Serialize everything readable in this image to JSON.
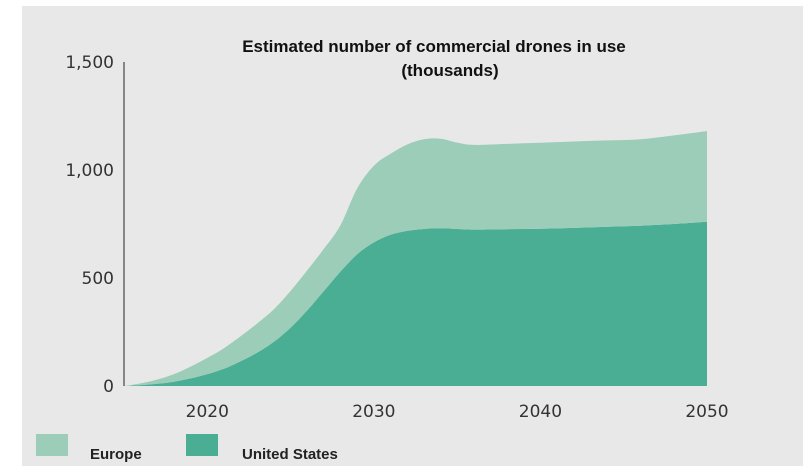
{
  "chart_data": {
    "type": "area",
    "stacked": true,
    "title": "Estimated number of commercial drones in use",
    "subtitle": "(thousands)",
    "xlabel": "",
    "ylabel": "",
    "xlim": [
      2015,
      2050
    ],
    "ylim": [
      0,
      1500
    ],
    "x_ticks": [
      2020,
      2030,
      2040,
      2050
    ],
    "y_ticks": [
      0,
      500,
      1000,
      1500
    ],
    "x_tick_labels": [
      "2020",
      "2030",
      "2040",
      "2050"
    ],
    "y_tick_labels": [
      "0",
      "500",
      "1,000",
      "1,500"
    ],
    "grid": false,
    "legend_position": "bottom-left",
    "x": [
      2015,
      2016,
      2017,
      2018,
      2019,
      2020,
      2021,
      2022,
      2023,
      2024,
      2025,
      2026,
      2027,
      2028,
      2029,
      2030,
      2031,
      2032,
      2033,
      2034,
      2035,
      2036,
      2038,
      2040,
      2042,
      2044,
      2046,
      2048,
      2050
    ],
    "series": [
      {
        "name": "United States",
        "color": "#4aae94",
        "values": [
          0,
          4,
          10,
          20,
          35,
          55,
          80,
          115,
          155,
          205,
          270,
          350,
          440,
          530,
          610,
          665,
          700,
          718,
          727,
          730,
          727,
          724,
          726,
          728,
          732,
          737,
          742,
          750,
          760
        ]
      },
      {
        "name": "Europe",
        "color": "#9bcdb9",
        "values": [
          0,
          8,
          20,
          35,
          55,
          75,
          95,
          115,
          135,
          150,
          170,
          185,
          195,
          215,
          305,
          355,
          375,
          400,
          415,
          415,
          400,
          392,
          395,
          398,
          400,
          400,
          400,
          410,
          420
        ]
      }
    ]
  }
}
